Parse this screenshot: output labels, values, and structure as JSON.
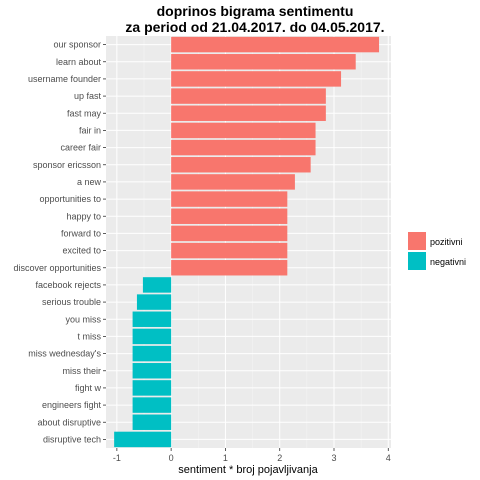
{
  "chart_data": {
    "type": "bar",
    "orientation": "horizontal",
    "title_line1": "doprinos bigrama sentimentu",
    "title_line2": "za period od 21.04.2017. do 04.05.2017.",
    "xlabel": "sentiment * broj pojavljivanja",
    "ylabel": "",
    "xlim": [
      -1.2,
      4.05
    ],
    "xticks": [
      -1,
      0,
      1,
      2,
      3,
      4
    ],
    "grid": true,
    "legend_position": "right",
    "categories": [
      "our sponsor",
      "learn about",
      "username founder",
      "up fast",
      "fast may",
      "fair in",
      "career fair",
      "sponsor ericsson",
      "a new",
      "opportunities to",
      "happy to",
      "forward to",
      "excited to",
      "discover opportunities",
      "facebook rejects",
      "serious trouble",
      "you miss",
      "t miss",
      "miss wednesday's",
      "miss their",
      "fight w",
      "engineers fight",
      "about disruptive",
      "disruptive tech"
    ],
    "values": [
      3.83,
      3.4,
      3.13,
      2.85,
      2.85,
      2.66,
      2.66,
      2.57,
      2.28,
      2.14,
      2.14,
      2.14,
      2.14,
      2.14,
      -0.52,
      -0.63,
      -0.71,
      -0.71,
      -0.71,
      -0.71,
      -0.71,
      -0.71,
      -0.71,
      -1.05
    ],
    "series": [
      {
        "name": "pozitivni",
        "color": "#F8766D"
      },
      {
        "name": "negativni",
        "color": "#00BFC4"
      }
    ]
  }
}
